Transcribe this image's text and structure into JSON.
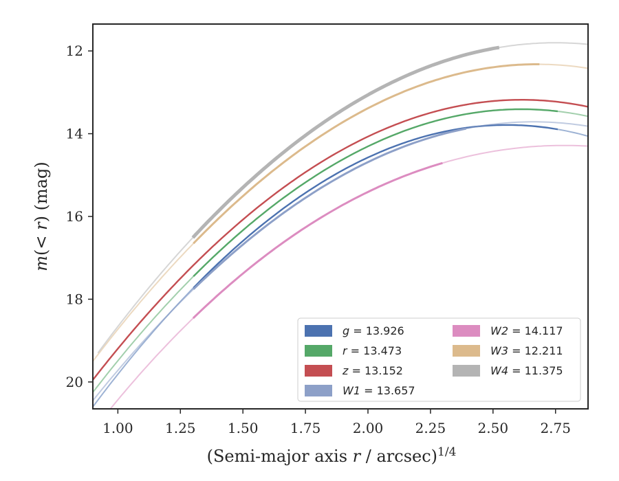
{
  "chart_data": {
    "type": "line",
    "xlabel": "(Semi-major axis r / arcsec)",
    "xlabel_parts": {
      "pre": "(Semi-major axis ",
      "var": "r",
      "post": " / arcsec)",
      "sup": "1/4"
    },
    "ylabel": "m(< r) (mag)",
    "ylabel_parts": {
      "m": "m",
      "inner": "(< ",
      "r": "r",
      "close": ")",
      "unit": " (mag)"
    },
    "xlim": [
      0.9,
      2.88
    ],
    "ylim": [
      20.65,
      11.35
    ],
    "y_inverted": true,
    "x_ticks": [
      "1.00",
      "1.25",
      "1.50",
      "1.75",
      "2.00",
      "2.25",
      "2.50",
      "2.75"
    ],
    "y_ticks": [
      "12",
      "14",
      "16",
      "18",
      "20"
    ],
    "grid": false,
    "legend_position": "bottom-right",
    "series": [
      {
        "name": "g = 13.926",
        "band": "g",
        "mag": "13.926",
        "color": "#4c72b0",
        "x_start": 0.9,
        "x_end": 2.88,
        "x_mid": 1.9,
        "y_at_start": 20.6,
        "y_at_mid": 14.88,
        "y_at_end": 14.06,
        "solid_from": 1.29,
        "solid_to": 2.76
      },
      {
        "name": "r = 13.473",
        "band": "r",
        "mag": "13.473",
        "color": "#55a868",
        "x_start": 0.9,
        "x_end": 2.88,
        "x_mid": 1.9,
        "y_at_start": 20.25,
        "y_at_mid": 14.62,
        "y_at_end": 13.58,
        "solid_from": 1.29,
        "solid_to": 2.76
      },
      {
        "name": "z = 13.152",
        "band": "z",
        "mag": "13.152",
        "color": "#c44e52",
        "x_start": 0.9,
        "x_end": 2.88,
        "x_mid": 1.9,
        "y_at_start": 19.95,
        "y_at_mid": 14.38,
        "y_at_end": 13.35,
        "solid_from": 0.9,
        "solid_to": 2.88
      },
      {
        "name": "W1 = 13.657",
        "band": "W1",
        "mag": "13.657",
        "color": "#8da0c8",
        "x_start": 0.9,
        "x_end": 2.88,
        "x_mid": 1.9,
        "y_at_start": 20.45,
        "y_at_mid": 15.0,
        "y_at_end": 13.82,
        "solid_from": 1.29,
        "solid_to": 2.4
      },
      {
        "name": "W2 = 14.117",
        "band": "W2",
        "mag": "14.117",
        "color": "#dc8cc0",
        "x_start": 0.97,
        "x_end": 2.88,
        "x_mid": 1.9,
        "y_at_start": 20.65,
        "y_at_mid": 15.72,
        "y_at_end": 14.3,
        "solid_from": 1.29,
        "solid_to": 2.3
      },
      {
        "name": "W3 = 12.211",
        "band": "W3",
        "mag": "12.211",
        "color": "#dcba8c",
        "x_start": 0.9,
        "x_end": 2.88,
        "x_mid": 1.9,
        "y_at_start": 19.5,
        "y_at_mid": 13.72,
        "y_at_end": 12.42,
        "solid_from": 1.29,
        "solid_to": 2.69
      },
      {
        "name": "W4 = 11.375",
        "band": "W4",
        "mag": "11.375",
        "color": "#b4b4b4",
        "x_start": 0.92,
        "x_end": 2.88,
        "x_mid": 1.9,
        "y_at_start": 19.3,
        "y_at_mid": 13.42,
        "y_at_end": 11.84,
        "solid_from": 1.29,
        "solid_to": 2.53
      }
    ]
  }
}
